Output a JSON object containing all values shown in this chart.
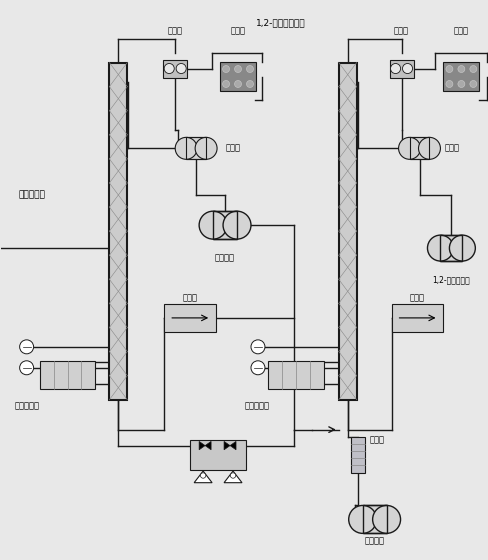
{
  "bg_color": "#e8e8e8",
  "line_color": "#1a1a1a",
  "lw": 1.0,
  "fig_w": 4.89,
  "fig_h": 5.6,
  "dpi": 100,
  "labels": {
    "left_col": "共汸精馏塔",
    "left_cond1": "冷凝器",
    "left_cond2": "冷凝器",
    "left_reflux_drum": "回流罐",
    "left_overhead_tank": "塔顶储罐",
    "left_reflux_pump": "回流泵",
    "left_reboiler": "塔底再沸器",
    "right_col": "1,2-丁二醇精馏塔",
    "right_cond1": "冷凝器",
    "right_cond2": "冷凝器",
    "right_reflux_drum": "回流罐",
    "right_bd_tank": "1,2-丁二醇储罐",
    "right_reflux_pump": "回流泵",
    "right_reboiler": "塔底再沸器",
    "right_cooler": "冷却器",
    "right_bottom_tank": "塔釜储罐"
  }
}
